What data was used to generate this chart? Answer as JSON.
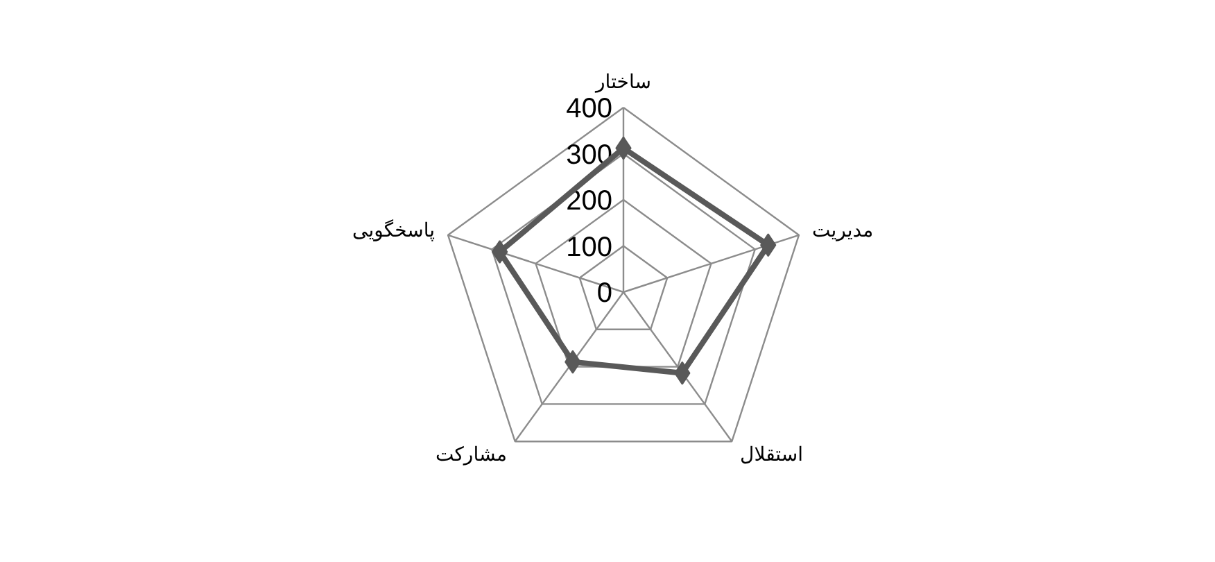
{
  "chart_data": {
    "type": "radar",
    "categories": [
      "ساختار",
      "مدیریت",
      "استقلال",
      "مشارکت",
      "پاسخگویی"
    ],
    "series": [
      {
        "color": "#595959",
        "values": [
          312,
          330,
          217,
          187,
          282
        ]
      }
    ],
    "ylim": [
      0,
      400
    ],
    "yticks": [
      0,
      100,
      200,
      300,
      400
    ],
    "grid": true,
    "marker": "diamond",
    "line_style": "solid"
  }
}
